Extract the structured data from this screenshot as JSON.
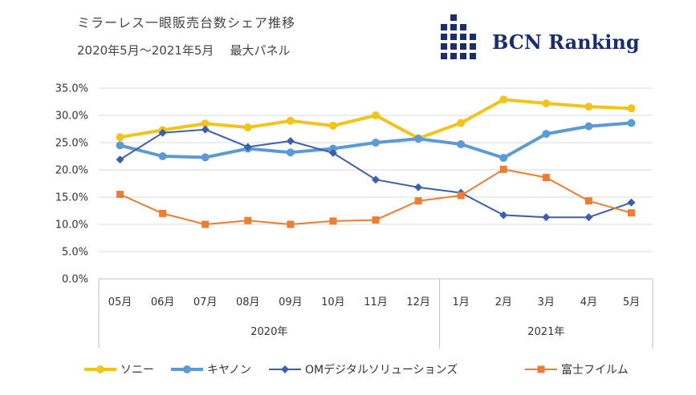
{
  "header": {
    "title": "ミラーレス一眼販売台数シェア推移",
    "period": "2020年5月～2021年5月",
    "subtitle": "最大パネル"
  },
  "logo": {
    "text": "BCN Ranking",
    "color": "#1a2e6e"
  },
  "chart_data": {
    "type": "line",
    "categories": [
      "05月",
      "06月",
      "07月",
      "08月",
      "09月",
      "10月",
      "11月",
      "12月",
      "1月",
      "2月",
      "3月",
      "4月",
      "5月"
    ],
    "year_groups": [
      {
        "label": "2020年",
        "start": 0,
        "end": 7
      },
      {
        "label": "2021年",
        "start": 8,
        "end": 12
      }
    ],
    "y_ticks": [
      "0.0%",
      "5.0%",
      "10.0%",
      "15.0%",
      "20.0%",
      "25.0%",
      "30.0%",
      "35.0%"
    ],
    "ylim": [
      0,
      35
    ],
    "grid": true,
    "legend_position": "bottom",
    "series": [
      {
        "name": "ソニー",
        "color": "#f2c31a",
        "marker": "circle",
        "values": [
          26.0,
          27.3,
          28.5,
          27.8,
          29.0,
          28.1,
          30.0,
          25.8,
          28.6,
          32.9,
          32.2,
          31.6,
          31.3
        ]
      },
      {
        "name": "キヤノン",
        "color": "#5b9bd5",
        "marker": "circle",
        "values": [
          24.5,
          22.5,
          22.3,
          23.9,
          23.2,
          23.9,
          25.0,
          25.7,
          24.7,
          22.2,
          26.6,
          28.0,
          28.6
        ]
      },
      {
        "name": "OMデジタルソリューションズ",
        "color": "#3a5fb0",
        "marker": "diamond",
        "values": [
          21.9,
          26.8,
          27.4,
          24.2,
          25.3,
          23.1,
          18.2,
          16.8,
          15.8,
          11.7,
          11.3,
          11.3,
          14.0
        ]
      },
      {
        "name": "富士フイルム",
        "color": "#ed7d31",
        "marker": "square",
        "values": [
          15.5,
          12.0,
          10.0,
          10.7,
          10.0,
          10.6,
          10.8,
          14.3,
          15.3,
          20.1,
          18.6,
          14.3,
          12.1
        ]
      }
    ]
  }
}
